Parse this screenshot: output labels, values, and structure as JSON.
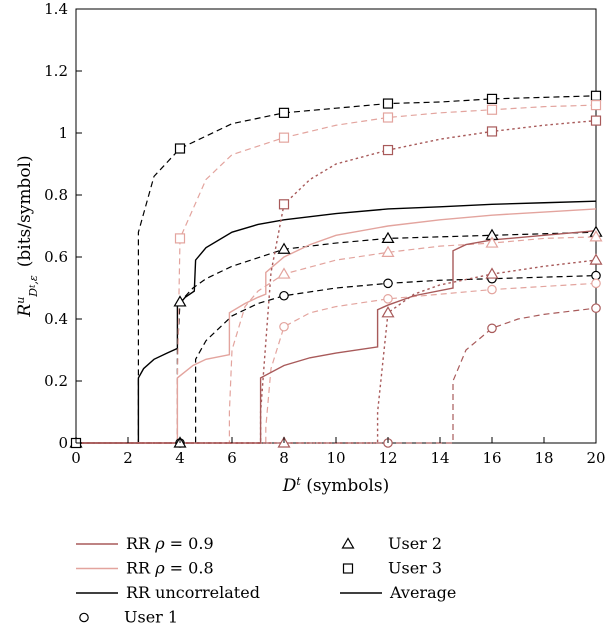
{
  "chart_data": {
    "type": "line",
    "x_axis": {
      "label_symbol": "D",
      "label_sup": "t",
      "label_unit": " (symbols)",
      "range": [
        0,
        20
      ],
      "ticks": [
        0,
        2,
        4,
        6,
        8,
        10,
        12,
        14,
        16,
        18,
        20
      ]
    },
    "y_axis": {
      "label_symbol": "R",
      "label_sup": "u",
      "label_sub": "D",
      "label_sub_sup": "t",
      "label_sub_tail": ",ε",
      "label_unit": "(bits/symbol)",
      "range": [
        0,
        1.4
      ],
      "ticks": [
        0,
        0.2,
        0.4,
        0.6,
        0.8,
        1.0,
        1.2,
        1.4
      ],
      "tick_labels": [
        "0",
        "0.2",
        "0.4",
        "0.6",
        "0.8",
        "1",
        "1.2",
        "1.4"
      ]
    },
    "grid": false,
    "legend_position": "bottom",
    "colors": {
      "rho09": "#a85a5a",
      "rho08": "#e3a49e",
      "uncorrelated": "#000000"
    },
    "legend": [
      {
        "kind": "line",
        "color": "#a85a5a",
        "label_prefix": "RR ",
        "label_rho": "ρ",
        "label_suffix": " = 0.9"
      },
      {
        "kind": "line",
        "color": "#e3a49e",
        "label_prefix": "RR ",
        "label_rho": "ρ",
        "label_suffix": " = 0.8"
      },
      {
        "kind": "line",
        "color": "#000000",
        "label_prefix": "RR uncorrelated",
        "label_rho": "",
        "label_suffix": ""
      },
      {
        "kind": "marker",
        "marker": "circle",
        "label_prefix": "User 1",
        "label_rho": "",
        "label_suffix": ""
      },
      {
        "kind": "marker",
        "marker": "triangle",
        "label_prefix": "User 2",
        "label_rho": "",
        "label_suffix": ""
      },
      {
        "kind": "marker",
        "marker": "square",
        "label_prefix": "User 3",
        "label_rho": "",
        "label_suffix": ""
      },
      {
        "kind": "solidline",
        "color": "#000000",
        "label_prefix": "Average",
        "label_rho": "",
        "label_suffix": ""
      }
    ],
    "series": [
      {
        "corr": "uncorrelated",
        "user": "User 3",
        "marker": "square",
        "dash": "dashed",
        "threshold": 2.4,
        "points": [
          [
            2.4,
            0.68
          ],
          [
            3,
            0.86
          ],
          [
            4,
            0.95
          ],
          [
            5,
            0.99
          ],
          [
            6,
            1.03
          ],
          [
            8,
            1.065
          ],
          [
            10,
            1.08
          ],
          [
            12,
            1.095
          ],
          [
            14,
            1.1
          ],
          [
            16,
            1.11
          ],
          [
            18,
            1.115
          ],
          [
            20,
            1.12
          ]
        ]
      },
      {
        "corr": "uncorrelated",
        "user": "User 2",
        "marker": "triangle",
        "dash": "dashed",
        "threshold": 3.9,
        "points": [
          [
            3.9,
            0.3
          ],
          [
            4,
            0.455
          ],
          [
            4.5,
            0.5
          ],
          [
            5,
            0.53
          ],
          [
            6,
            0.57
          ],
          [
            8,
            0.625
          ],
          [
            10,
            0.645
          ],
          [
            12,
            0.66
          ],
          [
            14,
            0.665
          ],
          [
            16,
            0.67
          ],
          [
            18,
            0.675
          ],
          [
            20,
            0.68
          ]
        ]
      },
      {
        "corr": "uncorrelated",
        "user": "User 1",
        "marker": "circle",
        "dash": "dashed",
        "threshold": 4.6,
        "points": [
          [
            4.6,
            0.27
          ],
          [
            5,
            0.33
          ],
          [
            6,
            0.41
          ],
          [
            7,
            0.45
          ],
          [
            8,
            0.475
          ],
          [
            10,
            0.5
          ],
          [
            12,
            0.515
          ],
          [
            14,
            0.525
          ],
          [
            16,
            0.53
          ],
          [
            18,
            0.535
          ],
          [
            20,
            0.54
          ]
        ]
      },
      {
        "corr": "uncorrelated",
        "user": "Average",
        "marker": "none",
        "dash": "solid",
        "threshold": 2.4,
        "points": [
          [
            2.4,
            0.21
          ],
          [
            2.6,
            0.24
          ],
          [
            3,
            0.27
          ],
          [
            3.5,
            0.29
          ],
          [
            3.9,
            0.305
          ],
          [
            3.9,
            0.44
          ],
          [
            4.2,
            0.47
          ],
          [
            4.55,
            0.49
          ],
          [
            4.6,
            0.59
          ],
          [
            5,
            0.63
          ],
          [
            6,
            0.68
          ],
          [
            7,
            0.705
          ],
          [
            8,
            0.72
          ],
          [
            10,
            0.74
          ],
          [
            12,
            0.755
          ],
          [
            14,
            0.762
          ],
          [
            16,
            0.77
          ],
          [
            18,
            0.775
          ],
          [
            20,
            0.78
          ]
        ]
      },
      {
        "corr": "rho08",
        "user": "User 3",
        "marker": "square",
        "dash": "dashed",
        "threshold": 3.9,
        "points": [
          [
            3.9,
            0.2
          ],
          [
            4,
            0.66
          ],
          [
            5,
            0.85
          ],
          [
            6,
            0.93
          ],
          [
            8,
            0.985
          ],
          [
            10,
            1.025
          ],
          [
            12,
            1.05
          ],
          [
            14,
            1.065
          ],
          [
            16,
            1.075
          ],
          [
            18,
            1.085
          ],
          [
            20,
            1.09
          ]
        ]
      },
      {
        "corr": "rho08",
        "user": "User 2",
        "marker": "triangle",
        "dash": "dashed",
        "threshold": 5.9,
        "points": [
          [
            5.9,
            0.1
          ],
          [
            6,
            0.3
          ],
          [
            6.5,
            0.44
          ],
          [
            7,
            0.49
          ],
          [
            8,
            0.545
          ],
          [
            10,
            0.59
          ],
          [
            12,
            0.615
          ],
          [
            14,
            0.635
          ],
          [
            16,
            0.645
          ],
          [
            18,
            0.66
          ],
          [
            20,
            0.665
          ]
        ]
      },
      {
        "corr": "rho08",
        "user": "User 1",
        "marker": "circle",
        "dash": "dashed",
        "threshold": 7.3,
        "points": [
          [
            7.3,
            0.05
          ],
          [
            7.5,
            0.24
          ],
          [
            8,
            0.375
          ],
          [
            9,
            0.42
          ],
          [
            10,
            0.44
          ],
          [
            12,
            0.465
          ],
          [
            14,
            0.48
          ],
          [
            16,
            0.495
          ],
          [
            18,
            0.505
          ],
          [
            20,
            0.515
          ]
        ]
      },
      {
        "corr": "rho08",
        "user": "Average",
        "marker": "none",
        "dash": "solid",
        "threshold": 3.9,
        "points": [
          [
            3.9,
            0.21
          ],
          [
            4.5,
            0.25
          ],
          [
            5,
            0.27
          ],
          [
            5.9,
            0.285
          ],
          [
            5.9,
            0.42
          ],
          [
            6.5,
            0.45
          ],
          [
            7,
            0.47
          ],
          [
            7.3,
            0.48
          ],
          [
            7.3,
            0.55
          ],
          [
            8,
            0.6
          ],
          [
            9,
            0.64
          ],
          [
            10,
            0.67
          ],
          [
            12,
            0.7
          ],
          [
            14,
            0.72
          ],
          [
            16,
            0.735
          ],
          [
            18,
            0.745
          ],
          [
            20,
            0.755
          ]
        ]
      },
      {
        "corr": "rho09",
        "user": "User 3",
        "marker": "square",
        "dash": "dotted",
        "threshold": 7.1,
        "points": [
          [
            7.1,
            0.1
          ],
          [
            7.5,
            0.55
          ],
          [
            8,
            0.77
          ],
          [
            9,
            0.85
          ],
          [
            10,
            0.9
          ],
          [
            12,
            0.945
          ],
          [
            14,
            0.98
          ],
          [
            16,
            1.005
          ],
          [
            18,
            1.025
          ],
          [
            20,
            1.04
          ]
        ]
      },
      {
        "corr": "rho09",
        "user": "User 2",
        "marker": "triangle",
        "dash": "dotted",
        "threshold": 11.6,
        "points": [
          [
            11.6,
            0.1
          ],
          [
            12,
            0.42
          ],
          [
            13,
            0.48
          ],
          [
            14,
            0.51
          ],
          [
            16,
            0.545
          ],
          [
            18,
            0.57
          ],
          [
            20,
            0.59
          ]
        ]
      },
      {
        "corr": "rho09",
        "user": "User 1",
        "marker": "circle",
        "dash": "dashed",
        "threshold": 14.5,
        "points": [
          [
            14.5,
            0.2
          ],
          [
            15,
            0.3
          ],
          [
            16,
            0.37
          ],
          [
            17,
            0.4
          ],
          [
            18,
            0.415
          ],
          [
            20,
            0.435
          ]
        ]
      },
      {
        "corr": "rho09",
        "user": "Average",
        "marker": "none",
        "dash": "solid",
        "threshold": 7.1,
        "points": [
          [
            7.1,
            0.21
          ],
          [
            8,
            0.25
          ],
          [
            9,
            0.275
          ],
          [
            10,
            0.29
          ],
          [
            11.6,
            0.31
          ],
          [
            11.6,
            0.43
          ],
          [
            12,
            0.445
          ],
          [
            13,
            0.475
          ],
          [
            14.5,
            0.5
          ],
          [
            14.5,
            0.62
          ],
          [
            15,
            0.64
          ],
          [
            16,
            0.655
          ],
          [
            18,
            0.67
          ],
          [
            20,
            0.685
          ]
        ]
      }
    ],
    "zero_markers": [
      {
        "x": 0,
        "marker": "circle"
      },
      {
        "x": 0,
        "marker": "triangle"
      },
      {
        "x": 0,
        "marker": "square"
      },
      {
        "x": 4,
        "marker": "circle"
      },
      {
        "x": 4,
        "marker": "triangle"
      },
      {
        "x": 8,
        "marker": "triangle"
      },
      {
        "x": 12,
        "marker": "circle"
      }
    ],
    "marker_x": [
      4,
      8,
      12,
      16,
      20
    ]
  }
}
